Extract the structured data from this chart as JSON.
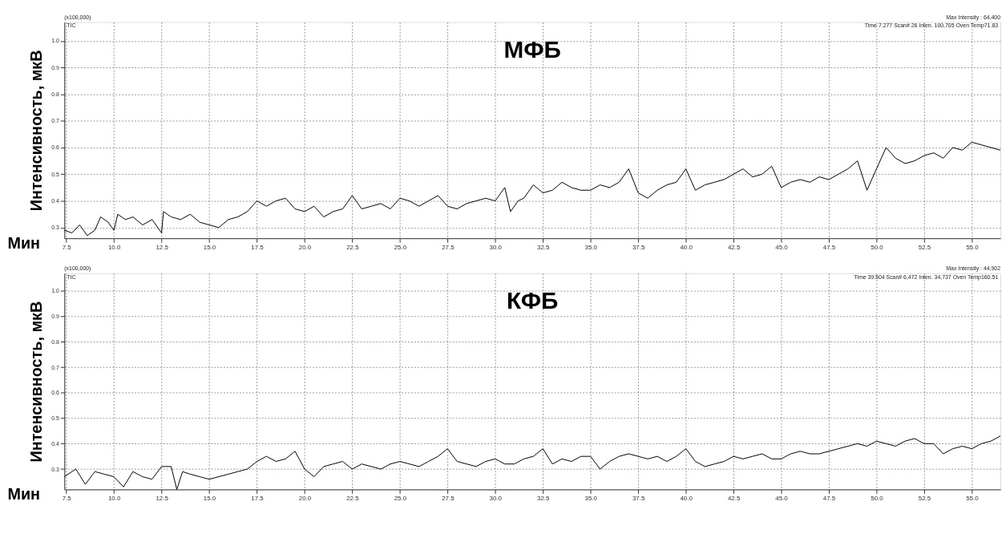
{
  "chart_data": [
    {
      "type": "line",
      "title": "МФБ",
      "xlabel": "Мин",
      "ylabel": "Интенсивность, мкВ",
      "annotations": [
        "(x100,000)",
        "TIC",
        "Max Intensity : 64,400",
        "Time 7.277 Scan# 26 Inten. 100,705 Oven Temp71.83"
      ],
      "xlim": [
        7.4,
        56.5
      ],
      "ylim": [
        0.26,
        1.07
      ],
      "xticks": [
        7.5,
        {
          "value": 10,
          "label": "10.0"
        },
        12.5,
        {
          "value": 15,
          "label": "15.0"
        },
        17.5,
        {
          "value": 20,
          "label": "20.0"
        },
        22.5,
        {
          "value": 25,
          "label": "25.0"
        },
        27.5,
        {
          "value": 30,
          "label": "30.0"
        },
        32.5,
        {
          "value": 35,
          "label": "35.0"
        },
        37.5,
        {
          "value": 40,
          "label": "40.0"
        },
        42.5,
        {
          "value": 45,
          "label": "45.0"
        },
        47.5,
        {
          "value": 50,
          "label": "50.0"
        },
        52.5,
        {
          "value": 55,
          "label": "55.0"
        }
      ],
      "yticks": [
        0.3,
        0.4,
        0.5,
        0.6,
        0.7,
        0.8,
        0.9,
        {
          "value": 1,
          "label": "1.0"
        }
      ],
      "grid": true,
      "line_style": "solid",
      "x": [
        7.4,
        7.8,
        8.2,
        8.6,
        9.0,
        9.3,
        9.7,
        10.0,
        10.2,
        10.6,
        11.0,
        11.5,
        12.0,
        12.5,
        12.6,
        13.0,
        13.5,
        14.0,
        14.5,
        15.0,
        15.5,
        16.0,
        16.5,
        17.0,
        17.5,
        18.0,
        18.5,
        19.0,
        19.5,
        20.0,
        20.5,
        21.0,
        21.5,
        22.0,
        22.5,
        23.0,
        23.5,
        24.0,
        24.5,
        25.0,
        25.5,
        26.0,
        26.5,
        27.0,
        27.5,
        28.0,
        28.5,
        29.0,
        29.5,
        30.0,
        30.5,
        30.8,
        31.2,
        31.5,
        32.0,
        32.5,
        33.0,
        33.5,
        34.0,
        34.5,
        35.0,
        35.5,
        36.0,
        36.5,
        37.0,
        37.5,
        38.0,
        38.5,
        39.0,
        39.5,
        40.0,
        40.5,
        41.0,
        41.5,
        42.0,
        42.5,
        43.0,
        43.5,
        44.0,
        44.5,
        45.0,
        45.5,
        46.0,
        46.5,
        47.0,
        47.5,
        48.0,
        48.5,
        49.0,
        49.5,
        50.0,
        50.5,
        51.0,
        51.5,
        52.0,
        52.5,
        53.0,
        53.5,
        54.0,
        54.5,
        55.0,
        55.5,
        56.0,
        56.5
      ],
      "series": [
        {
          "color": "#000000",
          "values": [
            0.29,
            0.28,
            0.31,
            0.27,
            0.29,
            0.34,
            0.32,
            0.29,
            0.35,
            0.33,
            0.34,
            0.31,
            0.33,
            0.28,
            0.36,
            0.34,
            0.33,
            0.35,
            0.32,
            0.31,
            0.3,
            0.33,
            0.34,
            0.36,
            0.4,
            0.38,
            0.4,
            0.41,
            0.37,
            0.36,
            0.38,
            0.34,
            0.36,
            0.37,
            0.42,
            0.37,
            0.38,
            0.39,
            0.37,
            0.41,
            0.4,
            0.38,
            0.4,
            0.42,
            0.38,
            0.37,
            0.39,
            0.4,
            0.41,
            0.4,
            0.45,
            0.36,
            0.4,
            0.41,
            0.46,
            0.43,
            0.44,
            0.47,
            0.45,
            0.44,
            0.44,
            0.46,
            0.45,
            0.47,
            0.52,
            0.43,
            0.41,
            0.44,
            0.46,
            0.47,
            0.52,
            0.44,
            0.46,
            0.47,
            0.48,
            0.5,
            0.52,
            0.49,
            0.5,
            0.53,
            0.45,
            0.47,
            0.48,
            0.47,
            0.49,
            0.48,
            0.5,
            0.52,
            0.55,
            0.44,
            0.52,
            0.6,
            0.56,
            0.54,
            0.55,
            0.57,
            0.58,
            0.56,
            0.6,
            0.59,
            0.62,
            0.61,
            0.6,
            0.59
          ]
        }
      ]
    },
    {
      "type": "line",
      "title": "КФБ",
      "xlabel": "Мин",
      "ylabel": "Интенсивность, мкВ",
      "annotations": [
        "(x100,000)",
        "TIC",
        "Max Intensity : 44,902",
        "Time 39.504 Scan# 6,472 Inten. 34,737 Oven Temp160.51"
      ],
      "xlim": [
        7.4,
        56.5
      ],
      "ylim": [
        0.22,
        1.07
      ],
      "xticks": [
        7.5,
        {
          "value": 10,
          "label": "10.0"
        },
        12.5,
        {
          "value": 15,
          "label": "15.0"
        },
        17.5,
        {
          "value": 20,
          "label": "20.0"
        },
        22.5,
        {
          "value": 25,
          "label": "25.0"
        },
        27.5,
        {
          "value": 30,
          "label": "30.0"
        },
        32.5,
        {
          "value": 35,
          "label": "35.0"
        },
        37.5,
        {
          "value": 40,
          "label": "40.0"
        },
        42.5,
        {
          "value": 45,
          "label": "45.0"
        },
        47.5,
        {
          "value": 50,
          "label": "50.0"
        },
        52.5,
        {
          "value": 55,
          "label": "55.0"
        }
      ],
      "yticks": [
        0.3,
        0.4,
        0.5,
        0.6,
        0.7,
        0.8,
        0.9,
        {
          "value": 1,
          "label": "1.0"
        }
      ],
      "grid": true,
      "line_style": "solid",
      "x": [
        7.4,
        8.0,
        8.5,
        9.0,
        9.5,
        10.0,
        10.5,
        11.0,
        11.5,
        12.0,
        12.5,
        13.0,
        13.3,
        13.6,
        14.0,
        14.5,
        15.0,
        15.5,
        16.0,
        16.5,
        17.0,
        17.5,
        18.0,
        18.5,
        19.0,
        19.5,
        20.0,
        20.5,
        21.0,
        21.5,
        22.0,
        22.5,
        23.0,
        23.5,
        24.0,
        24.5,
        25.0,
        25.5,
        26.0,
        26.5,
        27.0,
        27.5,
        28.0,
        28.5,
        29.0,
        29.5,
        30.0,
        30.5,
        31.0,
        31.5,
        32.0,
        32.5,
        33.0,
        33.5,
        34.0,
        34.5,
        35.0,
        35.5,
        36.0,
        36.5,
        37.0,
        37.5,
        38.0,
        38.5,
        39.0,
        39.5,
        40.0,
        40.5,
        41.0,
        41.5,
        42.0,
        42.5,
        43.0,
        43.5,
        44.0,
        44.5,
        45.0,
        45.5,
        46.0,
        46.5,
        47.0,
        47.5,
        48.0,
        48.5,
        49.0,
        49.5,
        50.0,
        50.5,
        51.0,
        51.5,
        52.0,
        52.5,
        53.0,
        53.5,
        54.0,
        54.5,
        55.0,
        55.5,
        56.0,
        56.5
      ],
      "series": [
        {
          "color": "#000000",
          "values": [
            0.27,
            0.3,
            0.24,
            0.29,
            0.28,
            0.27,
            0.23,
            0.29,
            0.27,
            0.26,
            0.31,
            0.31,
            0.22,
            0.29,
            0.28,
            0.27,
            0.26,
            0.27,
            0.28,
            0.29,
            0.3,
            0.33,
            0.35,
            0.33,
            0.34,
            0.37,
            0.3,
            0.27,
            0.31,
            0.32,
            0.33,
            0.3,
            0.32,
            0.31,
            0.3,
            0.32,
            0.33,
            0.32,
            0.31,
            0.33,
            0.35,
            0.38,
            0.33,
            0.32,
            0.31,
            0.33,
            0.34,
            0.32,
            0.32,
            0.34,
            0.35,
            0.38,
            0.32,
            0.34,
            0.33,
            0.35,
            0.35,
            0.3,
            0.33,
            0.35,
            0.36,
            0.35,
            0.34,
            0.35,
            0.33,
            0.35,
            0.38,
            0.33,
            0.31,
            0.32,
            0.33,
            0.35,
            0.34,
            0.35,
            0.36,
            0.34,
            0.34,
            0.36,
            0.37,
            0.36,
            0.36,
            0.37,
            0.38,
            0.39,
            0.4,
            0.39,
            0.41,
            0.4,
            0.39,
            0.41,
            0.42,
            0.4,
            0.4,
            0.36,
            0.38,
            0.39,
            0.38,
            0.4,
            0.41,
            0.43
          ]
        }
      ]
    }
  ]
}
